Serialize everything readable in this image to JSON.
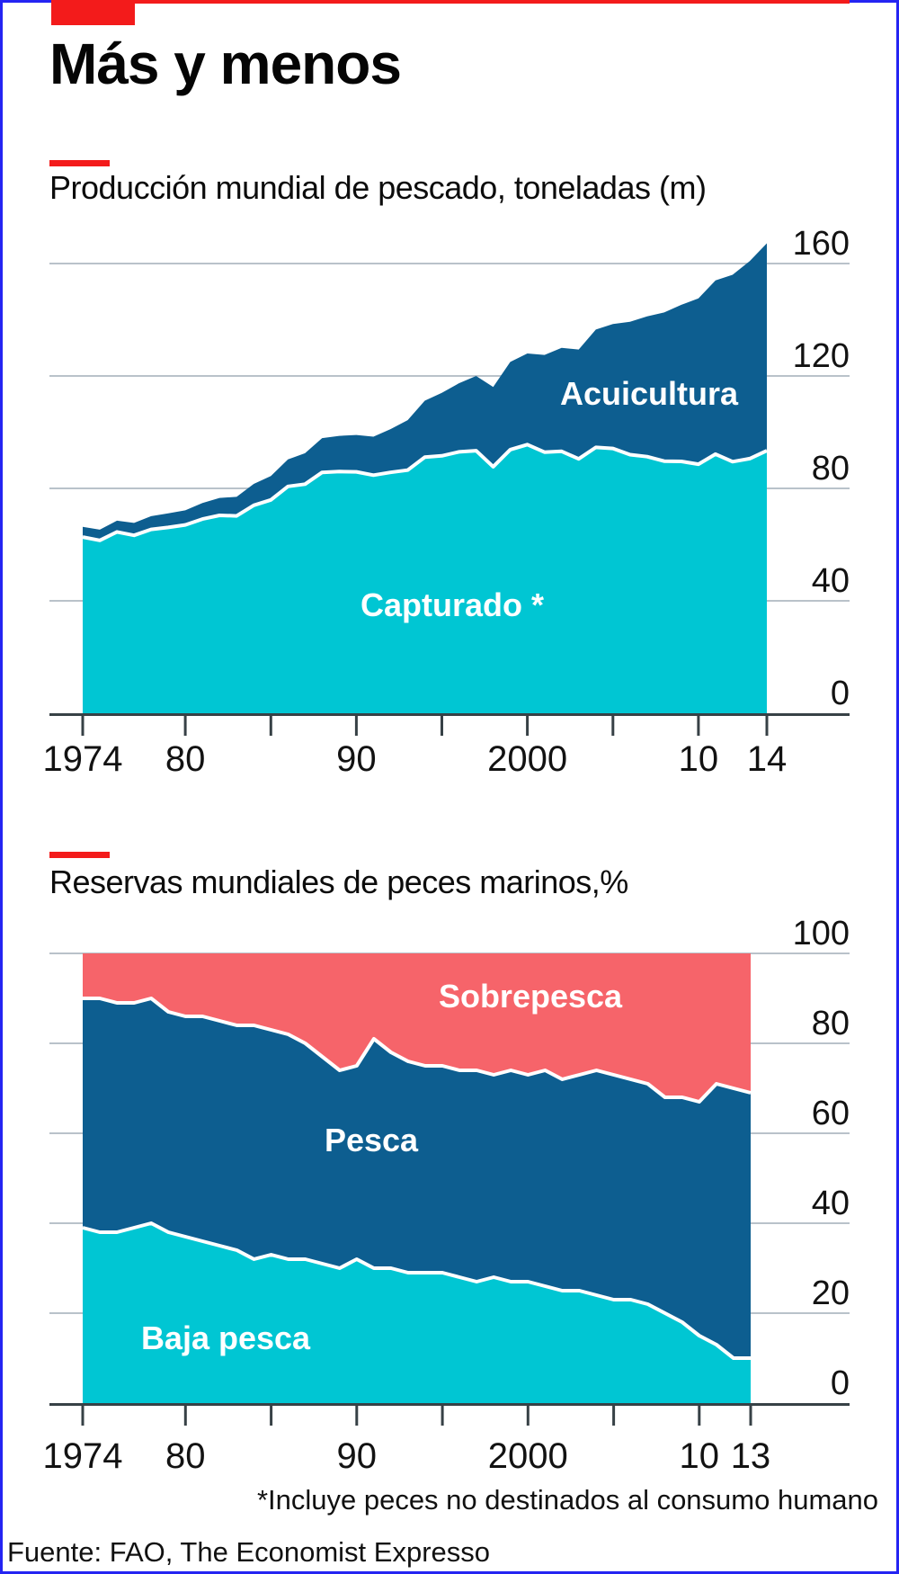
{
  "header": {
    "title": "Más y menos"
  },
  "colors": {
    "accent_red": "#f31b1b",
    "border_blue": "#2424f2",
    "capture_cyan": "#00c6d3",
    "aquaculture_blue": "#0d5e90",
    "overfished_red": "#f6646a",
    "grid": "#b9c2ca",
    "axis": "#374146",
    "text": "#121212",
    "label_white": "#ffffff"
  },
  "footnote": "*Incluye peces no destinados al consumo humano",
  "source": "Fuente: FAO, The Economist Expresso",
  "chart_data": [
    {
      "type": "area",
      "stacked": true,
      "title": "Producción mundial de pescado, toneladas (m)",
      "ylabel": "toneladas (m)",
      "ylim": [
        0,
        160
      ],
      "yticks": [
        0,
        40,
        80,
        120,
        160
      ],
      "grid": true,
      "legend_position": "inside-area-labels",
      "x": [
        1974,
        1975,
        1976,
        1977,
        1978,
        1979,
        1980,
        1981,
        1982,
        1983,
        1984,
        1985,
        1986,
        1987,
        1988,
        1989,
        1990,
        1991,
        1992,
        1993,
        1994,
        1995,
        1996,
        1997,
        1998,
        1999,
        2000,
        2001,
        2002,
        2003,
        2004,
        2005,
        2006,
        2007,
        2008,
        2009,
        2010,
        2011,
        2012,
        2013,
        2014
      ],
      "xticks": [
        {
          "year": 1974,
          "label": "1974"
        },
        {
          "year": 1980,
          "label": "80"
        },
        {
          "year": 1985,
          "label": ""
        },
        {
          "year": 1990,
          "label": "90"
        },
        {
          "year": 1995,
          "label": ""
        },
        {
          "year": 2000,
          "label": "2000"
        },
        {
          "year": 2005,
          "label": ""
        },
        {
          "year": 2010,
          "label": "10"
        },
        {
          "year": 2014,
          "label": "14"
        }
      ],
      "series": [
        {
          "name": "Capturado *",
          "color_key": "capture_cyan",
          "values": [
            62.7,
            61.5,
            64.5,
            63.3,
            65.4,
            66.1,
            67.0,
            69.1,
            70.4,
            70.2,
            74.0,
            75.9,
            80.7,
            81.5,
            85.7,
            86.0,
            85.9,
            84.7,
            85.7,
            86.5,
            91.1,
            91.6,
            93.0,
            93.4,
            87.7,
            93.8,
            95.6,
            92.9,
            93.2,
            90.5,
            94.6,
            94.2,
            92.0,
            91.3,
            89.7,
            89.6,
            88.6,
            92.2,
            89.5,
            90.6,
            93.4
          ]
        },
        {
          "name": "Acuicultura",
          "color_key": "aquaculture_blue",
          "values": [
            3.6,
            3.8,
            4.0,
            4.4,
            4.7,
            5.0,
            5.2,
            5.7,
            6.2,
            6.8,
            7.6,
            8.5,
            9.6,
            11.0,
            12.2,
            12.7,
            13.1,
            13.7,
            15.4,
            17.8,
            20.1,
            22.4,
            24.4,
            26.6,
            28.4,
            31.2,
            32.4,
            34.6,
            36.8,
            38.9,
            41.9,
            44.3,
            47.3,
            49.9,
            52.9,
            55.7,
            59.0,
            61.8,
            66.5,
            70.3,
            73.8
          ]
        }
      ]
    },
    {
      "type": "area",
      "stacked": true,
      "title": "Reservas mundiales de peces marinos,%",
      "ylabel": "%",
      "ylim": [
        0,
        100
      ],
      "yticks": [
        0,
        20,
        40,
        60,
        80,
        100
      ],
      "grid": true,
      "legend_position": "inside-area-labels",
      "x": [
        1974,
        1975,
        1976,
        1977,
        1978,
        1979,
        1980,
        1981,
        1982,
        1983,
        1984,
        1985,
        1986,
        1987,
        1988,
        1989,
        1990,
        1991,
        1992,
        1993,
        1994,
        1995,
        1996,
        1997,
        1998,
        1999,
        2000,
        2001,
        2002,
        2003,
        2004,
        2005,
        2006,
        2007,
        2008,
        2009,
        2010,
        2011,
        2012,
        2013
      ],
      "xticks": [
        {
          "year": 1974,
          "label": "1974"
        },
        {
          "year": 1980,
          "label": "80"
        },
        {
          "year": 1985,
          "label": ""
        },
        {
          "year": 1990,
          "label": "90"
        },
        {
          "year": 1995,
          "label": ""
        },
        {
          "year": 2000,
          "label": "2000"
        },
        {
          "year": 2005,
          "label": ""
        },
        {
          "year": 2010,
          "label": "10"
        },
        {
          "year": 2013,
          "label": "13"
        }
      ],
      "series": [
        {
          "name": "Baja pesca",
          "color_key": "capture_cyan",
          "values": [
            39,
            38,
            38,
            39,
            40,
            38,
            37,
            36,
            35,
            34,
            32,
            33,
            32,
            32,
            31,
            30,
            32,
            30,
            30,
            29,
            29,
            29,
            28,
            27,
            28,
            27,
            27,
            26,
            25,
            25,
            24,
            23,
            23,
            22,
            20,
            18,
            15,
            13,
            10,
            10
          ]
        },
        {
          "name": "Pesca",
          "color_key": "aquaculture_blue",
          "values": [
            51,
            52,
            51,
            50,
            50,
            49,
            49,
            50,
            50,
            50,
            52,
            50,
            50,
            48,
            46,
            44,
            43,
            51,
            48,
            47,
            46,
            46,
            46,
            47,
            45,
            47,
            46,
            48,
            47,
            48,
            50,
            50,
            49,
            49,
            48,
            50,
            52,
            58,
            60,
            59
          ]
        },
        {
          "name": "Sobrepesca",
          "color_key": "overfished_red",
          "values": [
            10,
            10,
            11,
            11,
            10,
            13,
            14,
            14,
            15,
            16,
            16,
            17,
            18,
            20,
            23,
            26,
            25,
            19,
            22,
            24,
            25,
            25,
            26,
            26,
            27,
            26,
            27,
            26,
            28,
            27,
            26,
            27,
            28,
            29,
            32,
            32,
            33,
            29,
            30,
            31
          ]
        }
      ]
    }
  ]
}
